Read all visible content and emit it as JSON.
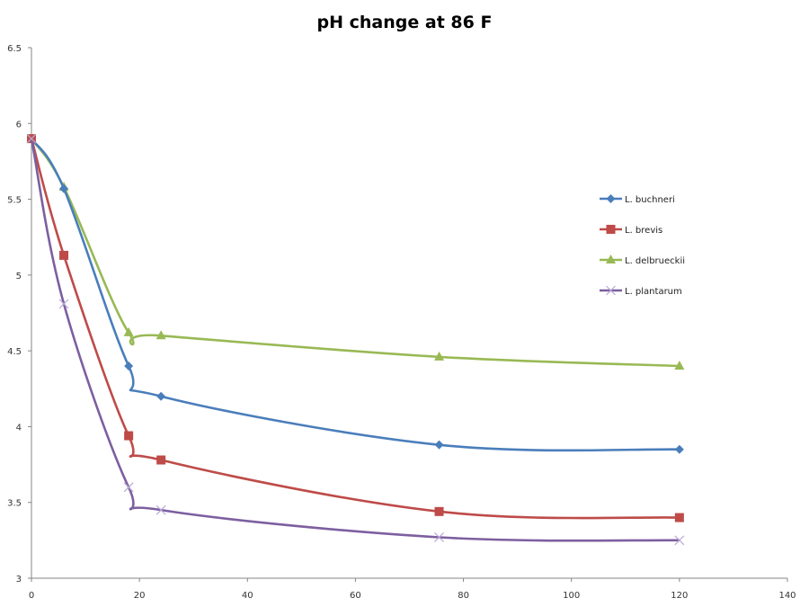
{
  "chart_data": {
    "type": "line",
    "title": "pH change at 86 F",
    "xlabel": "",
    "ylabel": "",
    "xlim": [
      0,
      140
    ],
    "ylim": [
      3,
      6.5
    ],
    "x_ticks": [
      0,
      20,
      40,
      60,
      80,
      100,
      120,
      140
    ],
    "y_ticks": [
      3,
      3.5,
      4,
      4.5,
      5,
      5.5,
      6,
      6.5
    ],
    "grid": false,
    "legend_position": "right",
    "smoothed": true,
    "x": [
      0,
      6,
      18,
      24,
      75.5,
      120
    ],
    "series": [
      {
        "name": "L. buchneri",
        "color": "#4a7ebb",
        "marker": "diamond",
        "values": [
          5.9,
          5.57,
          4.4,
          4.2,
          3.88,
          3.85
        ]
      },
      {
        "name": "L. brevis",
        "color": "#be4b48",
        "marker": "square",
        "values": [
          5.9,
          5.13,
          3.94,
          3.78,
          3.44,
          3.4
        ]
      },
      {
        "name": "L. delbrueckii",
        "color": "#98b954",
        "marker": "triangle",
        "values": [
          5.9,
          5.58,
          4.62,
          4.6,
          4.46,
          4.4
        ]
      },
      {
        "name": "L. plantarum",
        "color": "#7d5fa0",
        "marker": "x",
        "values": [
          5.9,
          4.81,
          3.6,
          3.45,
          3.27,
          3.25
        ]
      }
    ]
  }
}
